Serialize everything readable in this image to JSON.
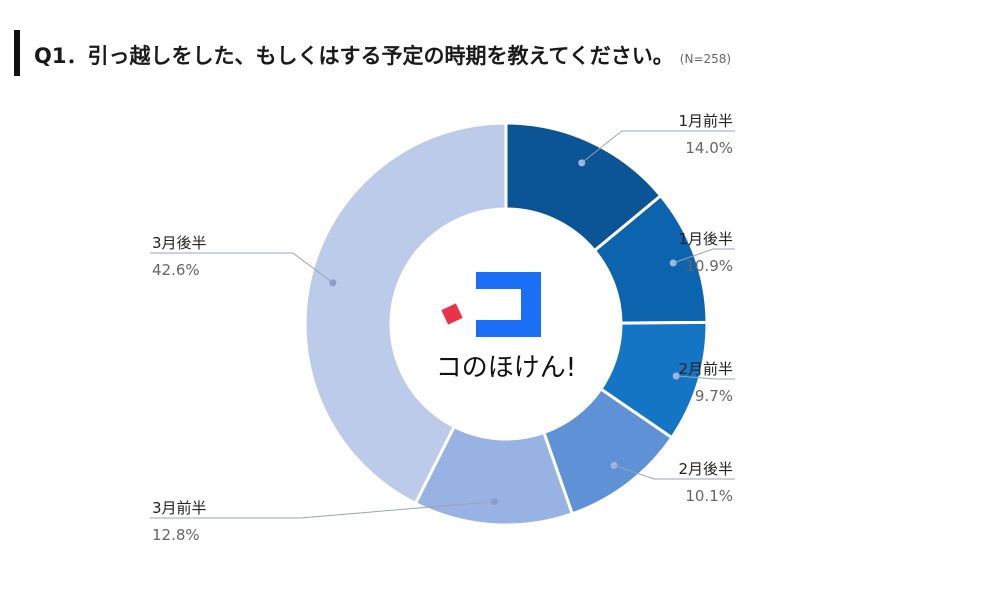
{
  "title": "Q1．引っ越しをした、もしくはする予定の時期を教えてください。",
  "sample_size": "(N=258)",
  "logo": {
    "text": "コのほけん!",
    "accent_color": "#e8334a",
    "brand_color": "#1a6ff5"
  },
  "chart_data": {
    "type": "pie",
    "style": "donut",
    "title": "Q1．引っ越しをした、もしくはする予定の時期を教えてください。",
    "categories": [
      "1月前半",
      "1月後半",
      "2月前半",
      "2月後半",
      "3月前半",
      "3月後半"
    ],
    "values": [
      14.0,
      10.9,
      9.7,
      10.1,
      12.8,
      42.6
    ],
    "value_labels": [
      "14.0%",
      "10.9%",
      "9.7%",
      "10.1%",
      "12.8%",
      "42.6%"
    ],
    "colors": [
      "#0b5597",
      "#0c64ae",
      "#1575c5",
      "#5f91d6",
      "#98b2e3",
      "#bccbea"
    ],
    "unit": "%",
    "legend": "none"
  }
}
